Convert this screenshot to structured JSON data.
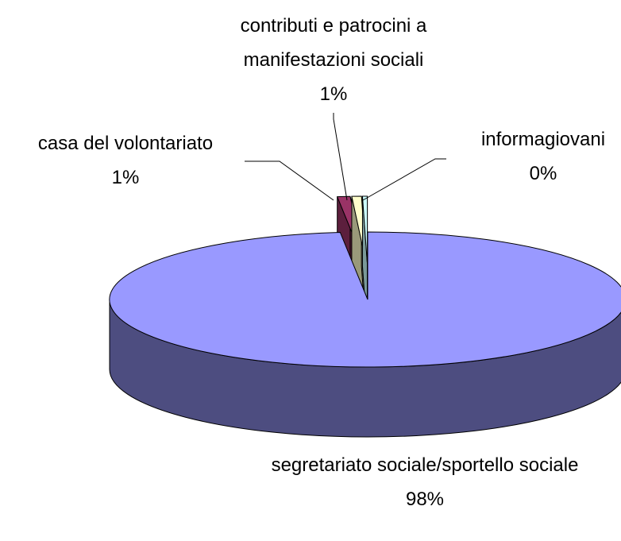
{
  "chart_data": {
    "type": "pie3d",
    "categories": [
      "segretariato sociale/sportello sociale",
      "casa del volontariato",
      "contributi e patrocini a manifestazioni sociali",
      "informagiovani"
    ],
    "values": [
      98.3,
      0.8,
      0.6,
      0.3
    ],
    "value_labels": [
      "98%",
      "1%",
      "1%",
      "0%"
    ],
    "colors": [
      "#9999ff",
      "#993366",
      "#ffffcc",
      "#ccffff"
    ],
    "side_colors": [
      "#4d4d80",
      "#5c1f3d",
      "#99997a",
      "#7a9999"
    ]
  }
}
